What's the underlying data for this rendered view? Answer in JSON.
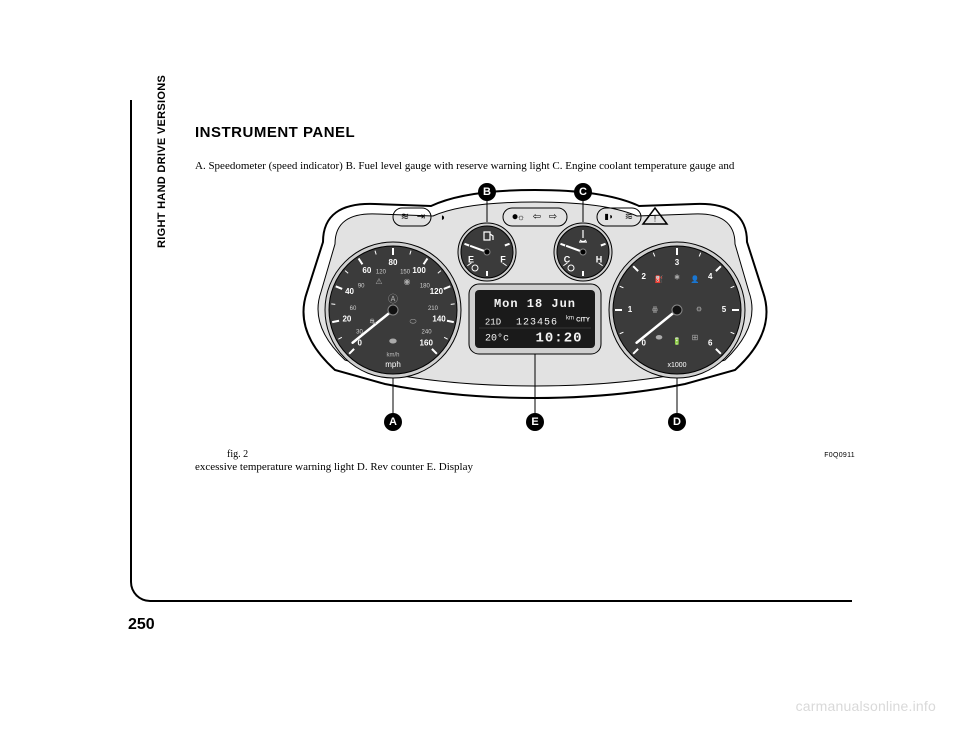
{
  "page": {
    "side_label": "RIGHT HAND DRIVE VERSIONS",
    "page_number": "250",
    "heading": "INSTRUMENT PANEL",
    "para1": "A. Speedometer (speed indicator) B. Fuel level gauge with reserve warning light C. Engine coolant temperature gauge and",
    "para2": "excessive temperature warning light D. Rev counter E. Display",
    "fig_label": "fig. 2",
    "fig_code": "F0Q0911",
    "watermark": "carmanualsonline.info"
  },
  "cluster": {
    "callouts": [
      "A",
      "B",
      "C",
      "D",
      "E"
    ],
    "speedometer": {
      "unit_outer": "mph",
      "unit_inner": "km/h",
      "mph_ticks": [
        "0",
        "20",
        "40",
        "60",
        "80",
        "100",
        "120",
        "140",
        "160"
      ],
      "kmh_ticks": [
        "30",
        "60",
        "90",
        "120",
        "150",
        "180",
        "210",
        "240"
      ],
      "face_fill": "#3b3b3b",
      "needle_color": "#ffffff",
      "tick_color": "#ffffff",
      "text_color": "#ffffff"
    },
    "tachometer": {
      "unit": "x1000",
      "ticks": [
        "0",
        "1",
        "2",
        "3",
        "4",
        "5",
        "6"
      ],
      "face_fill": "#3b3b3b",
      "needle_color": "#ffffff",
      "tick_color": "#ffffff",
      "text_color": "#ffffff"
    },
    "fuel_gauge": {
      "labels": [
        "E",
        "F"
      ],
      "face_fill": "#3b3b3b",
      "needle_color": "#ffffff",
      "text_color": "#ffffff"
    },
    "temp_gauge": {
      "labels": [
        "C",
        "H"
      ],
      "face_fill": "#3b3b3b",
      "needle_color": "#ffffff",
      "text_color": "#ffffff"
    },
    "display": {
      "bg": "#1a1a1a",
      "text_color": "#f4f4f4",
      "line1": "Mon 18 Jun",
      "line2_left": "21D",
      "line2_mid": "123456",
      "line2_unit": "km",
      "line2_right": "CITY",
      "line3_left": "20°c",
      "line3_right": "10:20"
    },
    "housing_stroke": "#000000",
    "housing_fill": "#ffffff",
    "bezel_fill": "#e2e2e2",
    "callout_dot_fill": "#000000",
    "callout_text": "#ffffff"
  }
}
